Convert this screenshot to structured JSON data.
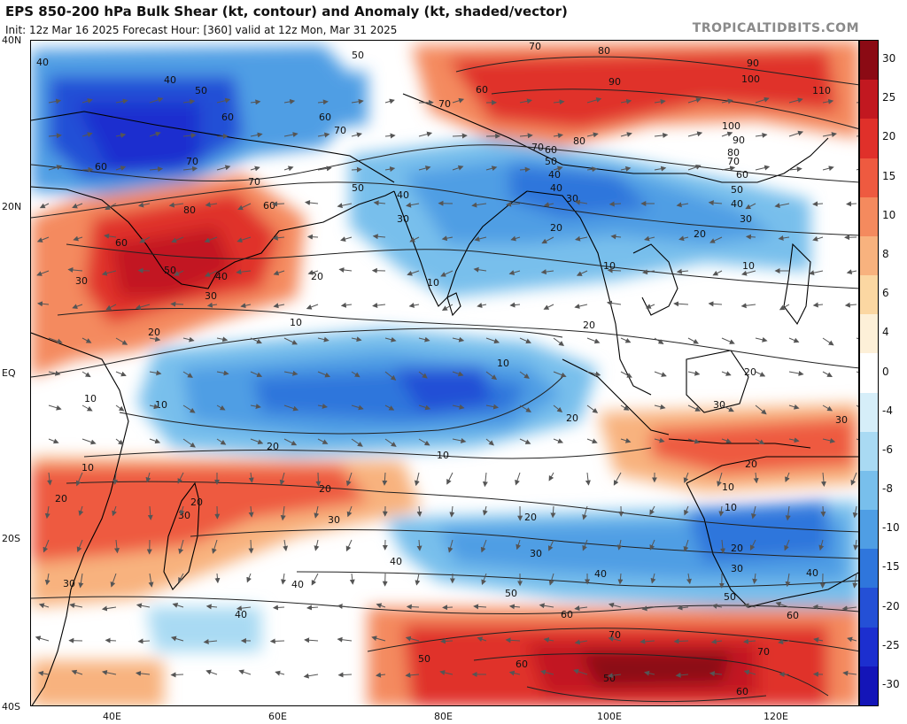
{
  "header": {
    "title": "EPS 850-200 hPa Bulk Shear (kt, contour) and Anomaly (kt, shaded/vector)",
    "subtitle": "Init: 12z Mar 16 2025   Forecast Hour: [360]   valid at 12z Mon, Mar 31 2025",
    "brand": "TROPICALTIDBITS.COM"
  },
  "axes": {
    "lat_labels": [
      "40N",
      "20N",
      "EQ",
      "20S",
      "40S"
    ],
    "lon_labels": [
      "40E",
      "60E",
      "80E",
      "100E",
      "120E"
    ]
  },
  "colorbar": {
    "labels": [
      "30",
      "25",
      "20",
      "15",
      "10",
      "8",
      "6",
      "4",
      "0",
      "-4",
      "-6",
      "-8",
      "-10",
      "-15",
      "-20",
      "-25",
      "-30"
    ],
    "colors": [
      "#8b0a14",
      "#c21820",
      "#e0302a",
      "#ee5a40",
      "#f48a5e",
      "#f8b27e",
      "#fbd7a2",
      "#fdf0d8",
      "#ffffff",
      "#d6eef9",
      "#a9daf3",
      "#78bfec",
      "#4f9ee4",
      "#2f76dc",
      "#2450d6",
      "#1c2fcf",
      "#1415b8"
    ]
  },
  "contour_labels": [
    "40",
    "50",
    "60",
    "70",
    "80",
    "90",
    "100",
    "110",
    "30",
    "20",
    "10"
  ],
  "map_features": {
    "land": "coastlines and borders",
    "field": "bulk shear anomaly shading"
  }
}
